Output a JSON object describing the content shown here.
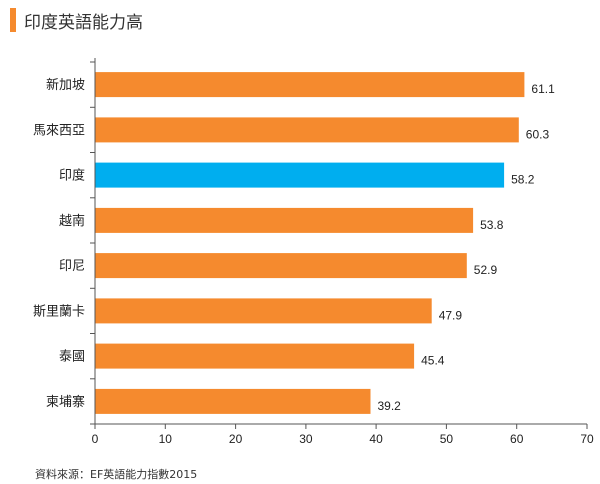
{
  "title": "印度英語能力高",
  "source": "資料來源：EF英語能力指數2015",
  "colors": {
    "title_marker": "#F58A2E",
    "bar_default": "#F58A2E",
    "bar_highlight": "#00AEEF",
    "axis": "#555555"
  },
  "chart_data": {
    "type": "bar",
    "orientation": "horizontal",
    "categories": [
      "新加坡",
      "馬來西亞",
      "印度",
      "越南",
      "印尼",
      "斯里蘭卡",
      "泰國",
      "柬埔寨"
    ],
    "values": [
      61.1,
      60.3,
      58.2,
      53.8,
      52.9,
      47.9,
      45.4,
      39.2
    ],
    "value_labels": [
      "61.1",
      "60.3",
      "58.2",
      "53.8",
      "52.9",
      "47.9",
      "45.4",
      "39.2"
    ],
    "highlight": "印度",
    "xlim": [
      0,
      70
    ],
    "xticks": [
      "0",
      "10",
      "20",
      "30",
      "40",
      "50",
      "60",
      "70"
    ],
    "grid": false,
    "legend": "none"
  }
}
